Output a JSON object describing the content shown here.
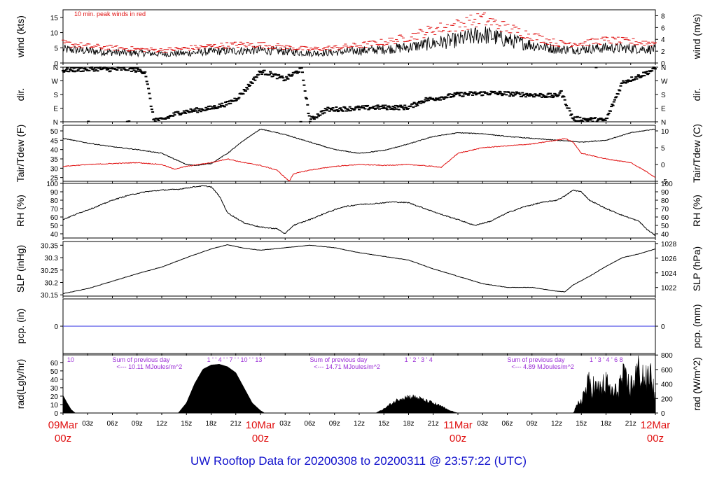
{
  "title": {
    "text": "UW Rooftop Data for 20200308  to  20200311 @ 23:57:22  (UTC)"
  },
  "colors": {
    "title": "#1010cc",
    "axis": "#000000",
    "series_main": "#000000",
    "series_red": "#e01010",
    "precip_line": "#2a2ae0",
    "annotation_purple": "#9b2fd6",
    "date_label": "#e01010"
  },
  "time_axis": {
    "hour_ticks": [
      "03z",
      "06z",
      "09z",
      "12z",
      "15z",
      "18z",
      "21z",
      "03z",
      "06z",
      "09z",
      "12z",
      "15z",
      "18z",
      "21z",
      "03z",
      "06z",
      "09z",
      "12z",
      "15z",
      "18z",
      "21z"
    ],
    "date_labels": [
      {
        "day": "09Mar",
        "hour": "00z",
        "at_hour": 0
      },
      {
        "day": "10Mar",
        "hour": "00z",
        "at_hour": 24
      },
      {
        "day": "11Mar",
        "hour": "00z",
        "at_hour": 48
      },
      {
        "day": "12Mar",
        "hour": "00z",
        "at_hour": 72
      }
    ],
    "range_hours": [
      0,
      72
    ]
  },
  "chart_data": [
    {
      "panel": "wind",
      "type": "line",
      "left_label": "wind (kts)",
      "right_label": "wind (m/s)",
      "left_ticks": [
        0,
        5,
        10,
        15
      ],
      "right_ticks": [
        0,
        2,
        4,
        6,
        8
      ],
      "ylim": [
        0,
        17.5
      ],
      "annotation": "10 min. peak winds in red",
      "series": [
        {
          "name": "wind",
          "x_hours": [
            0,
            3,
            6,
            9,
            12,
            15,
            18,
            21,
            24,
            27,
            30,
            33,
            36,
            39,
            42,
            45,
            48,
            51,
            54,
            57,
            60,
            63,
            66,
            69,
            72
          ],
          "y": [
            4.5,
            4.0,
            3.5,
            3.3,
            3.0,
            3.2,
            3.8,
            4.0,
            4.2,
            3.8,
            3.2,
            3.5,
            4.0,
            4.5,
            5.2,
            6.5,
            7.5,
            9.5,
            7.5,
            6.0,
            4.5,
            4.5,
            5.0,
            4.8,
            4.5
          ]
        },
        {
          "name": "10 min. peak winds",
          "x_hours": [
            0,
            3,
            6,
            9,
            12,
            15,
            18,
            21,
            24,
            27,
            30,
            33,
            36,
            39,
            42,
            45,
            48,
            51,
            54,
            57,
            60,
            63,
            66,
            69,
            72
          ],
          "y": [
            6.5,
            5.5,
            5.0,
            4.5,
            4.2,
            4.8,
            5.5,
            6.0,
            6.0,
            5.2,
            4.5,
            5.0,
            5.8,
            6.8,
            8.5,
            11.0,
            12.5,
            14.5,
            11.5,
            9.0,
            6.5,
            6.5,
            7.5,
            7.0,
            6.5
          ]
        }
      ]
    },
    {
      "panel": "dir",
      "type": "scatter",
      "left_label": "dir.",
      "right_label": "dir.",
      "left_ticks": [
        "N",
        "E",
        "S",
        "W",
        "N"
      ],
      "right_ticks": [
        "N",
        "E",
        "S",
        "W",
        "N"
      ],
      "ylim": [
        0,
        360
      ],
      "series": [
        {
          "name": "direction",
          "x_hours": [
            0,
            2,
            4,
            6,
            8,
            10,
            11,
            12,
            14,
            16,
            18,
            20,
            21,
            22,
            24,
            25,
            27,
            29,
            30,
            32,
            34,
            36,
            38,
            40,
            42,
            44,
            46,
            48,
            50,
            52,
            54,
            56,
            58,
            60,
            60.5,
            62,
            64,
            66,
            68,
            70,
            72
          ],
          "y": [
            340,
            345,
            350,
            345,
            350,
            330,
            20,
            10,
            60,
            75,
            90,
            120,
            150,
            200,
            330,
            320,
            280,
            350,
            10,
            80,
            85,
            90,
            95,
            95,
            95,
            145,
            160,
            180,
            185,
            190,
            185,
            180,
            175,
            170,
            200,
            20,
            15,
            10,
            260,
            300,
            350
          ]
        }
      ]
    },
    {
      "panel": "temp",
      "type": "line",
      "left_label": "Tair/Tdew (F)",
      "right_label": "Tair/Tdew (C)",
      "left_ticks": [
        25,
        30,
        35,
        40,
        45,
        50
      ],
      "right_ticks": [
        -5,
        0,
        5,
        10
      ],
      "ylim": [
        23,
        53
      ],
      "series": [
        {
          "name": "Tair",
          "x_hours": [
            0,
            3,
            6,
            9,
            12,
            15,
            16,
            18,
            20,
            22,
            24,
            27,
            30,
            33,
            36,
            39,
            42,
            45,
            48,
            51,
            54,
            57,
            60,
            63,
            66,
            69,
            72
          ],
          "y": [
            46,
            43.5,
            41.5,
            40,
            38,
            32,
            31.5,
            32.5,
            38,
            45,
            51,
            48,
            44,
            40,
            38,
            39.5,
            43,
            47,
            49,
            48.5,
            47,
            46,
            45,
            44,
            45,
            49,
            51
          ]
        },
        {
          "name": "Tdew",
          "x_hours": [
            0,
            3,
            6,
            9,
            12,
            13.5,
            15,
            18,
            20,
            22,
            24,
            26,
            27,
            27.5,
            28,
            30,
            33,
            36,
            39,
            42,
            45,
            46,
            48,
            51,
            54,
            57,
            60,
            61,
            62,
            63,
            66,
            69,
            71,
            72
          ],
          "y": [
            31,
            32,
            32.5,
            33,
            32,
            29.5,
            31,
            33,
            35,
            33,
            31.5,
            29,
            25,
            23,
            27,
            29,
            31,
            32,
            31.5,
            32,
            31,
            30.5,
            38,
            41,
            42,
            43,
            45,
            46,
            44,
            38,
            35,
            33,
            28,
            25
          ]
        }
      ]
    },
    {
      "panel": "rh",
      "type": "line",
      "left_label": "RH (%)",
      "right_label": "RH (%)",
      "left_ticks": [
        40,
        50,
        60,
        70,
        80,
        90,
        100
      ],
      "right_ticks": [
        40,
        50,
        60,
        70,
        80,
        90,
        100
      ],
      "ylim": [
        35,
        100
      ],
      "series": [
        {
          "name": "RH",
          "x_hours": [
            0,
            2,
            4,
            6,
            8,
            10,
            12,
            14,
            16,
            17,
            18,
            19,
            20,
            22,
            24,
            26,
            27,
            28,
            30,
            32,
            34,
            36,
            38,
            40,
            42,
            44,
            46,
            48,
            50,
            52,
            54,
            56,
            58,
            60,
            61,
            62,
            63,
            64,
            66,
            68,
            70,
            71,
            72
          ],
          "y": [
            57,
            65,
            72,
            80,
            86,
            90,
            92,
            93,
            96,
            97,
            96,
            85,
            65,
            53,
            48,
            46,
            40,
            50,
            57,
            65,
            72,
            75,
            76,
            78,
            77,
            70,
            63,
            57,
            50,
            55,
            65,
            72,
            77,
            80,
            85,
            92,
            90,
            80,
            70,
            62,
            55,
            45,
            38
          ]
        }
      ]
    },
    {
      "panel": "slp",
      "type": "line",
      "left_label": "SLP (inHg)",
      "right_label": "SLP (hPa)",
      "left_ticks": [
        30.15,
        30.2,
        30.25,
        30.3,
        30.35
      ],
      "right_ticks": [
        1022,
        1024,
        1026,
        1028
      ],
      "ylim": [
        30.145,
        30.365
      ],
      "series": [
        {
          "name": "SLP",
          "x_hours": [
            0,
            3,
            6,
            9,
            12,
            15,
            18,
            20,
            22,
            24,
            27,
            30,
            33,
            36,
            39,
            42,
            45,
            48,
            51,
            54,
            57,
            60,
            61,
            62,
            64,
            66,
            68,
            70,
            72
          ],
          "y": [
            30.155,
            30.175,
            30.205,
            30.235,
            30.262,
            30.3,
            30.335,
            30.352,
            30.338,
            30.33,
            30.34,
            30.35,
            30.34,
            30.32,
            30.305,
            30.29,
            30.255,
            30.225,
            30.195,
            30.18,
            30.18,
            30.165,
            30.162,
            30.19,
            30.225,
            30.265,
            30.3,
            30.315,
            30.335
          ]
        }
      ]
    },
    {
      "panel": "pcp",
      "type": "line",
      "left_label": "pcp. (in)",
      "right_label": "pcp. (mm)",
      "left_ticks": [
        0
      ],
      "right_ticks": [
        0
      ],
      "ylim": [
        -1,
        1
      ],
      "series": [
        {
          "name": "precip",
          "x_hours": [
            0,
            72
          ],
          "y": [
            0,
            0
          ]
        }
      ]
    },
    {
      "panel": "rad",
      "type": "area",
      "left_label": "rad(Lgly/hr)",
      "right_label": "rad (W/m^2)",
      "left_ticks": [
        0,
        10,
        20,
        30,
        40,
        50,
        60
      ],
      "right_ticks": [
        0,
        200,
        400,
        600,
        800
      ],
      "ylim": [
        0,
        69
      ],
      "annotations": [
        {
          "label": "10",
          "at_hour": 0.5,
          "row": "top"
        },
        {
          "label": "Sum of previous day",
          "at_hour": 6,
          "row": "top"
        },
        {
          "label": "<--- 10.11 MJoules/m^2",
          "at_hour": 6.5,
          "row": "bottom"
        },
        {
          "label": "1  '  '  4  '  '  7  '  '  10  '  '  13  '",
          "at_hour": 17.5,
          "row": "top"
        },
        {
          "label": "Sum of previous day",
          "at_hour": 30,
          "row": "top"
        },
        {
          "label": "<--- 14.71 MJoules/m^2",
          "at_hour": 30.5,
          "row": "bottom"
        },
        {
          "label": "1  '  2  '  3  '  4",
          "at_hour": 41.5,
          "row": "top"
        },
        {
          "label": "Sum of previous day",
          "at_hour": 54,
          "row": "top"
        },
        {
          "label": "<--- 4.89 MJoules/m^2",
          "at_hour": 54.5,
          "row": "bottom"
        },
        {
          "label": "1  '  3  '  4  '  6  8",
          "at_hour": 64,
          "row": "top"
        }
      ],
      "series": [
        {
          "name": "radiation",
          "x_hours": [
            0,
            0.5,
            1,
            1.5,
            2,
            14,
            15,
            16,
            17,
            18,
            19,
            20,
            21,
            22,
            23,
            24,
            24.5,
            38,
            39,
            40,
            41,
            42,
            43,
            44,
            45,
            46,
            47,
            48,
            62,
            63,
            64,
            65,
            66,
            67,
            68,
            69,
            70,
            71,
            71.5,
            72
          ],
          "y": [
            21,
            12,
            4,
            0,
            0,
            0,
            12,
            35,
            52,
            57,
            58,
            55,
            48,
            30,
            12,
            3,
            0,
            0,
            5,
            12,
            18,
            20,
            19,
            15,
            12,
            8,
            3,
            0,
            0,
            18,
            40,
            30,
            38,
            24,
            45,
            35,
            58,
            40,
            55,
            12
          ]
        }
      ]
    }
  ]
}
